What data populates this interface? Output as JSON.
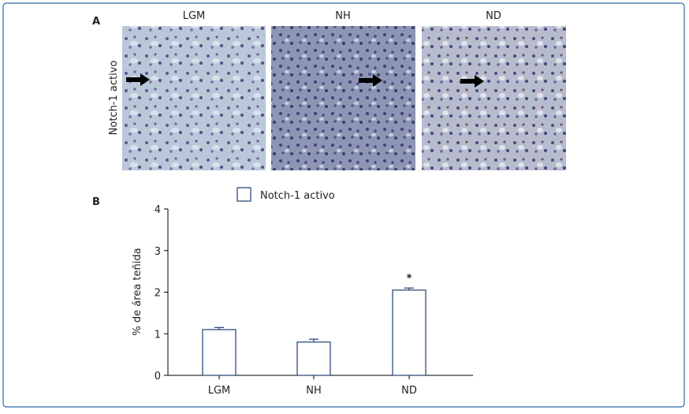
{
  "panel_a": {
    "label": "A",
    "row_label": "Notch-1 activo",
    "columns": [
      "LGM",
      "NH",
      "ND"
    ]
  },
  "chart_data": {
    "type": "bar",
    "label": "B",
    "y_label": "% de área teñida",
    "categories": [
      "LGM",
      "NH",
      "ND"
    ],
    "series": [
      {
        "name": "Notch-1 activo",
        "color": "#ffffff",
        "edge": "#1f3f73",
        "values": [
          1.1,
          0.8,
          2.05
        ],
        "errors": [
          0.05,
          0.07,
          0.05
        ]
      }
    ],
    "annotations": [
      {
        "category": "ND",
        "text": "*"
      }
    ],
    "ylim": [
      0,
      4
    ],
    "yticks": [
      0,
      1,
      2,
      3,
      4
    ]
  }
}
